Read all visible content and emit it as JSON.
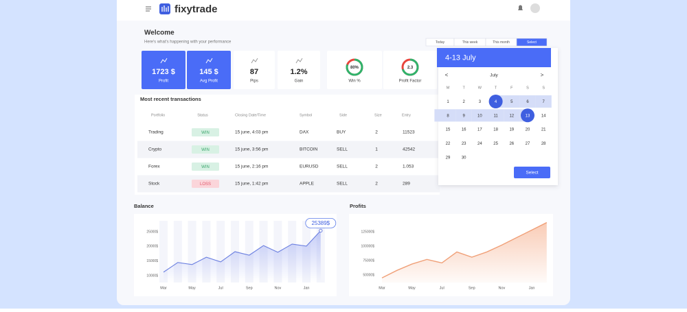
{
  "header": {
    "brand": "fixytrade"
  },
  "welcome": {
    "title": "Welcome",
    "subtitle": "Here's what's happening with your performance"
  },
  "range_buttons": {
    "items": [
      "Today",
      "This week",
      "This month",
      "Select"
    ],
    "active": 3
  },
  "stats": [
    {
      "value": "1723 $",
      "label": "Profit"
    },
    {
      "value": "145 $",
      "label": "Avg Profit"
    },
    {
      "value": "87",
      "label": "Pips"
    },
    {
      "value": "1.2%",
      "label": "Gain"
    },
    {
      "value": "80%",
      "label": "Win %",
      "ring": 80
    },
    {
      "value": "2.3",
      "label": "Profit Factor"
    }
  ],
  "table": {
    "title": "Most recent transactions",
    "headers": [
      "Portfolio",
      "Status",
      "Closing Date/Time",
      "Symbol",
      "Side",
      "Size",
      "Entry"
    ],
    "rows": [
      [
        "Trading",
        "WIN",
        "15 june, 4:03 pm",
        "DAX",
        "BUY",
        2,
        11523
      ],
      [
        "Crypto",
        "WIN",
        "15 june,  3:56 pm",
        "BITCOIN",
        "SELL",
        1,
        42542
      ],
      [
        "Forex",
        "WIN",
        "15 june,  2:16 pm",
        "EURUSD",
        "SELL",
        2,
        1.053
      ],
      [
        "Stock",
        "LOSS",
        "15 june,  1:42 pm",
        "APPLE",
        "SELL",
        2,
        289
      ]
    ]
  },
  "calendar": {
    "title": "4-13 July",
    "month": "July",
    "prev": "<",
    "next": ">",
    "weekdays": [
      "M",
      "T",
      "W",
      "T",
      "F",
      "S",
      "S"
    ],
    "weeks": [
      [
        1,
        2,
        3,
        4,
        5,
        6,
        7
      ],
      [
        8,
        9,
        10,
        11,
        12,
        13,
        14
      ],
      [
        15,
        16,
        17,
        18,
        19,
        20,
        21
      ],
      [
        22,
        23,
        24,
        25,
        26,
        27,
        28
      ],
      [
        29,
        30
      ]
    ],
    "range": [
      4,
      13
    ],
    "button": "Select"
  },
  "chart_data": [
    {
      "type": "line",
      "title": "Balance",
      "color": "#6b7fe0",
      "categories": [
        "Mar",
        null,
        "May",
        null,
        "Jul",
        null,
        "Sep",
        null,
        "Nov",
        null,
        "Jan",
        null
      ],
      "values": [
        11200,
        14500,
        13800,
        16300,
        14700,
        18200,
        17000,
        20300,
        18000,
        20800,
        20100,
        25389
      ],
      "value_labels": [
        null,
        null,
        null,
        null,
        null,
        null,
        null,
        null,
        null,
        null,
        null,
        "25389$"
      ],
      "ylim": [
        8000,
        29000
      ],
      "yticks": [
        {
          "value": 10000,
          "label": "10000$"
        },
        {
          "value": 15000,
          "label": "15000$"
        },
        {
          "value": 20000,
          "label": "20000$"
        },
        {
          "value": 25000,
          "label": "25000$"
        }
      ]
    },
    {
      "type": "area",
      "title": "Profits",
      "color": "#f0a078",
      "categories": [
        "Mar",
        null,
        "May",
        null,
        "Jul",
        null,
        "Sep",
        null,
        "Nov",
        null,
        "Jan",
        null
      ],
      "values": [
        45000,
        58000,
        69000,
        77000,
        71000,
        90000,
        81000,
        90000,
        102000,
        115000,
        128000,
        141000
      ],
      "ylim": [
        36000,
        150000
      ],
      "yticks": [
        {
          "value": 50000,
          "label": "50000$"
        },
        {
          "value": 75000,
          "label": "75000$"
        },
        {
          "value": 100000,
          "label": "100000$"
        },
        {
          "value": 125000,
          "label": "125000$"
        }
      ]
    }
  ]
}
